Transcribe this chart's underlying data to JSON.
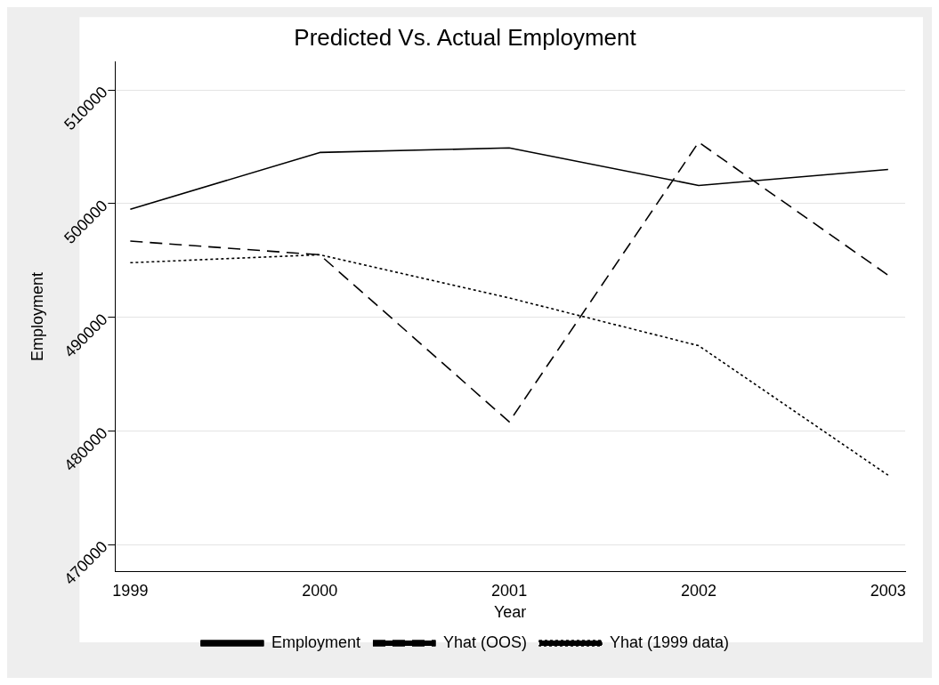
{
  "chart_data": {
    "type": "line",
    "title": "Predicted Vs. Actual Employment",
    "xlabel": "Year",
    "ylabel": "Employment",
    "x": [
      1999,
      2000,
      2001,
      2002,
      2003
    ],
    "series": [
      {
        "name": "Employment",
        "color": "#000000",
        "values": [
          499500,
          504500,
          504900,
          501600,
          503000
        ],
        "line_style": "solid"
      },
      {
        "name": "Yhat (OOS)",
        "color": "#000000",
        "values": [
          496700,
          495500,
          480800,
          505400,
          493700
        ],
        "line_style": "dashed"
      },
      {
        "name": "Yhat (1999 data)",
        "color": "#000000",
        "values": [
          494800,
          495500,
          491700,
          487500,
          476100
        ],
        "line_style": "dotted"
      }
    ],
    "xlim": [
      1998.92,
      2003.09
    ],
    "xticks": [
      1999,
      2000,
      2001,
      2002,
      2003
    ],
    "ylim": [
      467600,
      512500
    ],
    "yticks": [
      470000,
      480000,
      490000,
      500000,
      510000
    ],
    "grid": "y",
    "legend": "bottom",
    "marker": "none"
  }
}
